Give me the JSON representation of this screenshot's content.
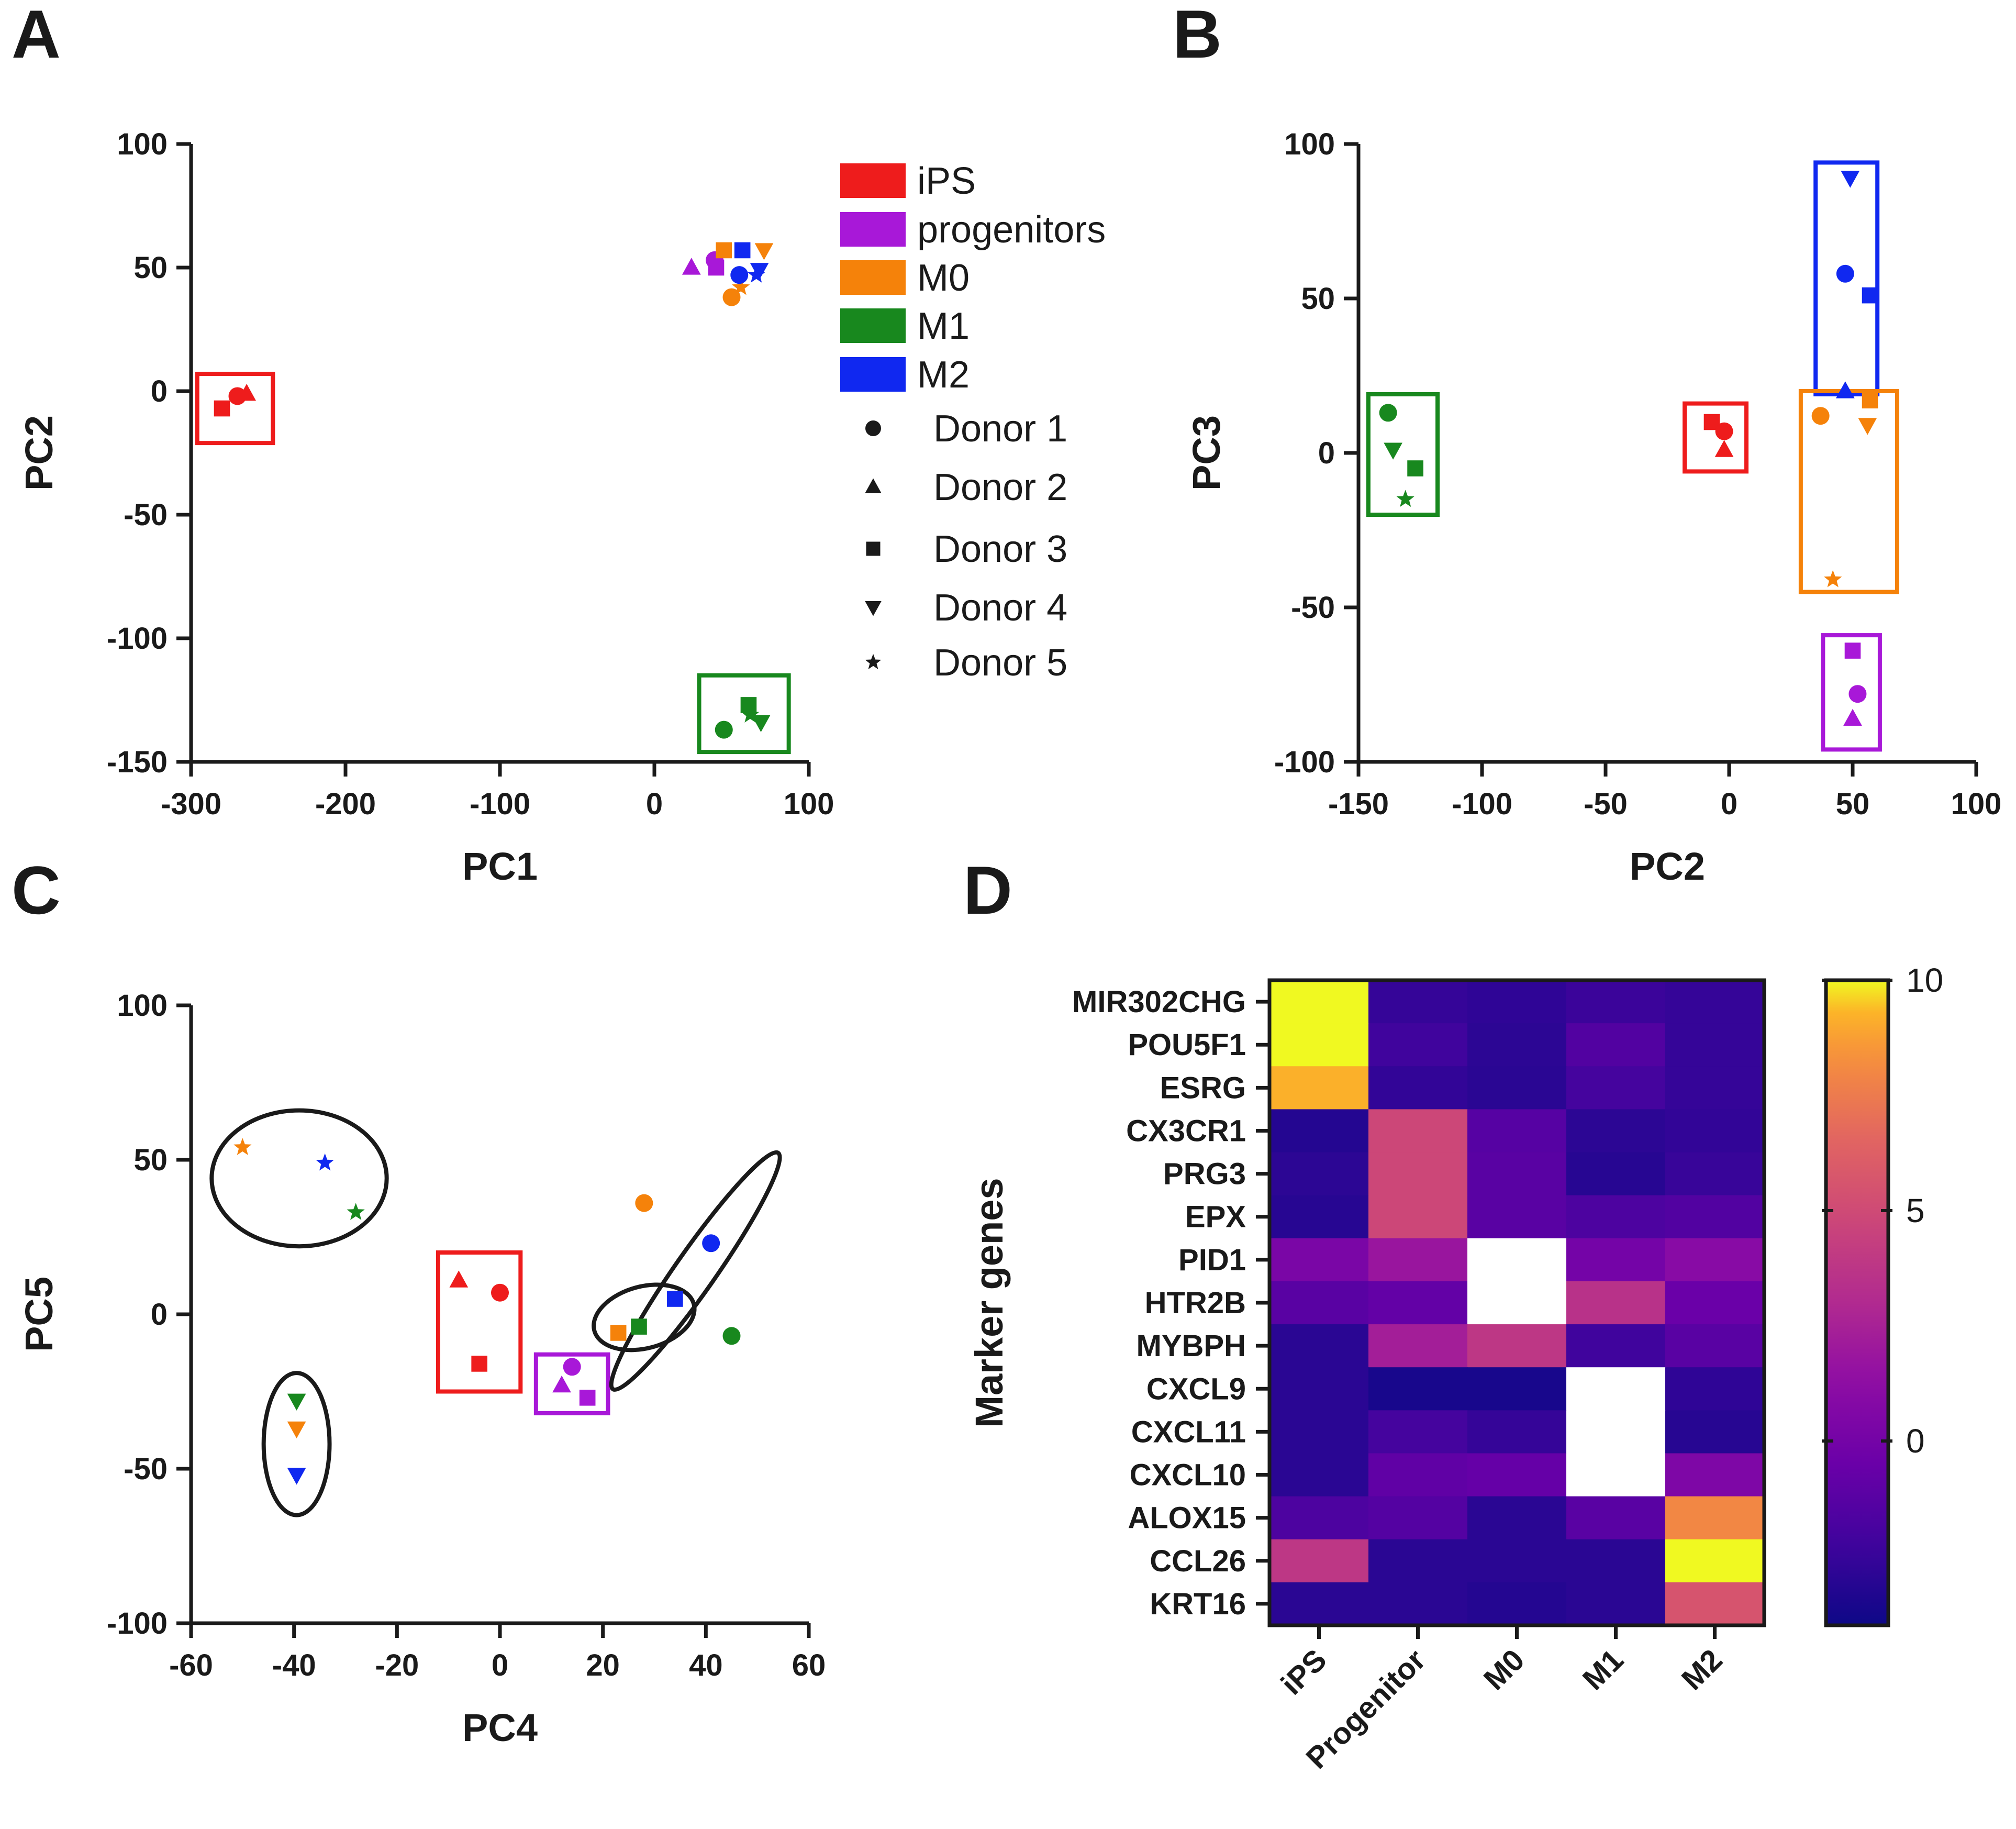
{
  "colors": {
    "iPS": "#ee1c1c",
    "progenitors": "#a818d8",
    "M0": "#f5820a",
    "M1": "#18881e",
    "M2": "#1028f0",
    "axis": "#1a1a1a"
  },
  "legend": {
    "groups": [
      {
        "label": "iPS",
        "key": "iPS"
      },
      {
        "label": "progenitors",
        "key": "progenitors"
      },
      {
        "label": "M0",
        "key": "M0"
      },
      {
        "label": "M1",
        "key": "M1"
      },
      {
        "label": "M2",
        "key": "M2"
      }
    ],
    "donors": [
      {
        "label": "Donor 1",
        "marker": "circle"
      },
      {
        "label": "Donor 2",
        "marker": "triangle"
      },
      {
        "label": "Donor 3",
        "marker": "square"
      },
      {
        "label": "Donor 4",
        "marker": "triangle-down"
      },
      {
        "label": "Donor 5",
        "marker": "star"
      }
    ]
  },
  "chart_data": [
    {
      "panel": "A",
      "type": "scatter",
      "xlabel": "PC1",
      "ylabel": "PC2",
      "xlim": [
        -300,
        100
      ],
      "ylim": [
        -150,
        100
      ],
      "xticks": [
        -300,
        -200,
        -100,
        0,
        100
      ],
      "yticks": [
        -150,
        -100,
        -50,
        0,
        50,
        100
      ],
      "points": [
        {
          "g": "iPS",
          "m": "square",
          "x": -280,
          "y": -7
        },
        {
          "g": "iPS",
          "m": "circle",
          "x": -270,
          "y": -2
        },
        {
          "g": "iPS",
          "m": "triangle",
          "x": -264,
          "y": -1
        },
        {
          "g": "progenitors",
          "m": "triangle",
          "x": 24,
          "y": 50
        },
        {
          "g": "progenitors",
          "m": "circle",
          "x": 39,
          "y": 53
        },
        {
          "g": "progenitors",
          "m": "square",
          "x": 40,
          "y": 50
        },
        {
          "g": "M0",
          "m": "square",
          "x": 45,
          "y": 57
        },
        {
          "g": "M0",
          "m": "circle",
          "x": 50,
          "y": 38
        },
        {
          "g": "M0",
          "m": "star",
          "x": 56,
          "y": 42
        },
        {
          "g": "M0",
          "m": "triangle-down",
          "x": 71,
          "y": 57
        },
        {
          "g": "M2",
          "m": "circle",
          "x": 55,
          "y": 47
        },
        {
          "g": "M2",
          "m": "square",
          "x": 57,
          "y": 57
        },
        {
          "g": "M2",
          "m": "triangle-down",
          "x": 68,
          "y": 49
        },
        {
          "g": "M2",
          "m": "star",
          "x": 66,
          "y": 47
        },
        {
          "g": "M1",
          "m": "circle",
          "x": 45,
          "y": -137
        },
        {
          "g": "M1",
          "m": "square",
          "x": 61,
          "y": -127
        },
        {
          "g": "M1",
          "m": "star",
          "x": 62,
          "y": -131
        },
        {
          "g": "M1",
          "m": "triangle-down",
          "x": 69,
          "y": -134
        }
      ],
      "boxes": [
        {
          "g": "iPS",
          "x": [
            -296,
            -247
          ],
          "y": [
            -21,
            7
          ]
        },
        {
          "g": "M1",
          "x": [
            29,
            87
          ],
          "y": [
            -146,
            -115
          ]
        }
      ]
    },
    {
      "panel": "B",
      "type": "scatter",
      "xlabel": "PC2",
      "ylabel": "PC3",
      "xlim": [
        -150,
        100
      ],
      "ylim": [
        -100,
        100
      ],
      "xticks": [
        -150,
        -100,
        -50,
        0,
        50,
        100
      ],
      "yticks": [
        -100,
        -50,
        0,
        50,
        100
      ],
      "points": [
        {
          "g": "M1",
          "m": "circle",
          "x": -138,
          "y": 13
        },
        {
          "g": "M1",
          "m": "triangle-down",
          "x": -136,
          "y": 1
        },
        {
          "g": "M1",
          "m": "square",
          "x": -127,
          "y": -5
        },
        {
          "g": "M1",
          "m": "star",
          "x": -131,
          "y": -15
        },
        {
          "g": "iPS",
          "m": "square",
          "x": -7,
          "y": 10
        },
        {
          "g": "iPS",
          "m": "circle",
          "x": -2,
          "y": 7
        },
        {
          "g": "iPS",
          "m": "triangle",
          "x": -2,
          "y": 1
        },
        {
          "g": "M2",
          "m": "triangle-down",
          "x": 49,
          "y": 89
        },
        {
          "g": "M2",
          "m": "circle",
          "x": 47,
          "y": 58
        },
        {
          "g": "M2",
          "m": "square",
          "x": 57,
          "y": 51
        },
        {
          "g": "M2",
          "m": "triangle",
          "x": 47,
          "y": 20
        },
        {
          "g": "M0",
          "m": "circle",
          "x": 37,
          "y": 12
        },
        {
          "g": "M0",
          "m": "square",
          "x": 57,
          "y": 17
        },
        {
          "g": "M0",
          "m": "triangle-down",
          "x": 56,
          "y": 9
        },
        {
          "g": "M0",
          "m": "star",
          "x": 42,
          "y": -41
        },
        {
          "g": "progenitors",
          "m": "square",
          "x": 50,
          "y": -64
        },
        {
          "g": "progenitors",
          "m": "circle",
          "x": 52,
          "y": -78
        },
        {
          "g": "progenitors",
          "m": "triangle",
          "x": 50,
          "y": -86
        }
      ],
      "boxes": [
        {
          "g": "M1",
          "x": [
            -146,
            -118
          ],
          "y": [
            -20,
            19
          ]
        },
        {
          "g": "iPS",
          "x": [
            -18,
            7
          ],
          "y": [
            -6,
            16
          ]
        },
        {
          "g": "M2",
          "x": [
            35,
            60
          ],
          "y": [
            19,
            94
          ]
        },
        {
          "g": "M0",
          "x": [
            29,
            68
          ],
          "y": [
            -45,
            20
          ]
        },
        {
          "g": "progenitors",
          "x": [
            38,
            61
          ],
          "y": [
            -96,
            -59
          ]
        }
      ]
    },
    {
      "panel": "C",
      "type": "scatter",
      "xlabel": "PC4",
      "ylabel": "PC5",
      "xlim": [
        -60,
        60
      ],
      "ylim": [
        -100,
        100
      ],
      "xticks": [
        -60,
        -40,
        -20,
        0,
        20,
        40,
        60
      ],
      "yticks": [
        -100,
        -50,
        0,
        50,
        100
      ],
      "points": [
        {
          "g": "M0",
          "m": "star",
          "x": -50,
          "y": 54
        },
        {
          "g": "M2",
          "m": "star",
          "x": -34,
          "y": 49
        },
        {
          "g": "M1",
          "m": "star",
          "x": -28,
          "y": 33
        },
        {
          "g": "M1",
          "m": "triangle-down",
          "x": -39.5,
          "y": -28
        },
        {
          "g": "M0",
          "m": "triangle-down",
          "x": -39.5,
          "y": -37
        },
        {
          "g": "M2",
          "m": "triangle-down",
          "x": -39.5,
          "y": -52
        },
        {
          "g": "iPS",
          "m": "triangle",
          "x": -8,
          "y": 11
        },
        {
          "g": "iPS",
          "m": "circle",
          "x": 0,
          "y": 7
        },
        {
          "g": "iPS",
          "m": "square",
          "x": -4,
          "y": -16
        },
        {
          "g": "progenitors",
          "m": "circle",
          "x": 14,
          "y": -17
        },
        {
          "g": "progenitors",
          "m": "triangle",
          "x": 12,
          "y": -23
        },
        {
          "g": "progenitors",
          "m": "square",
          "x": 17,
          "y": -27
        },
        {
          "g": "M0",
          "m": "circle",
          "x": 28,
          "y": 36
        },
        {
          "g": "M2",
          "m": "circle",
          "x": 41,
          "y": 23
        },
        {
          "g": "M0",
          "m": "square",
          "x": 23,
          "y": -6
        },
        {
          "g": "M1",
          "m": "square",
          "x": 27,
          "y": -4
        },
        {
          "g": "M2",
          "m": "square",
          "x": 34,
          "y": 5
        },
        {
          "g": "M1",
          "m": "circle",
          "x": 45,
          "y": -7
        }
      ],
      "boxes": [
        {
          "g": "iPS",
          "x": [
            -12,
            4
          ],
          "y": [
            -25,
            20
          ]
        },
        {
          "g": "progenitors",
          "x": [
            7,
            21
          ],
          "y": [
            -32,
            -13
          ]
        }
      ],
      "ellipses": [
        {
          "cx": -39,
          "cy": 44,
          "rx": 17,
          "ry": 22,
          "rot": 0
        },
        {
          "cx": -39.5,
          "cy": -42,
          "rx": 6.4,
          "ry": 23,
          "rot": 0
        },
        {
          "cx": 28,
          "cy": -1,
          "rx": 10,
          "ry": 10,
          "rot": -15
        },
        {
          "cx": 38,
          "cy": 14,
          "rx": 28,
          "ry": 6.5,
          "rot": -55
        }
      ]
    },
    {
      "panel": "D",
      "type": "heatmap",
      "ylabel": "Marker genes",
      "columns": [
        "iPS",
        "Progenitor",
        "M0",
        "M1",
        "M2"
      ],
      "rows": [
        "MIR302CHG",
        "POU5F1",
        "ESRG",
        "CX3CR1",
        "PRG3",
        "EPX",
        "PID1",
        "HTR2B",
        "MYBPH",
        "CXCL9",
        "CXCL11",
        "CXCL10",
        "ALOX15",
        "CCL26",
        "KRT16"
      ],
      "values": [
        [
          10,
          -2.6,
          -2.8,
          -2.4,
          -2.6
        ],
        [
          10,
          -2.2,
          -2.9,
          -1.5,
          -2.6
        ],
        [
          9.2,
          -2.7,
          -3,
          -2,
          -2.6
        ],
        [
          -3.2,
          4.8,
          -1.3,
          -2.9,
          -2.7
        ],
        [
          -2.9,
          4.8,
          -1.2,
          -3.1,
          -2.5
        ],
        [
          -3.1,
          4.8,
          -1.2,
          -1.7,
          -1.5
        ],
        [
          0.3,
          1.8,
          null,
          0,
          1
        ],
        [
          -1.2,
          -0.8,
          null,
          3.5,
          -0.5
        ],
        [
          -3,
          2.3,
          3.8,
          -2.2,
          -1.2
        ],
        [
          -3,
          -3.6,
          -3.6,
          null,
          -2.8
        ],
        [
          -3,
          -2,
          -2.6,
          null,
          -3.1
        ],
        [
          -3,
          -0.9,
          -0.7,
          null,
          0.5
        ],
        [
          -1.7,
          -1.4,
          -3,
          -1.2,
          8
        ],
        [
          3.8,
          -3,
          -3,
          -3,
          10
        ],
        [
          -3,
          -3,
          -3.2,
          -3,
          5.6
        ]
      ],
      "colorbar": {
        "min": -4,
        "max": 10,
        "ticks": [
          10,
          5,
          0
        ]
      }
    }
  ]
}
